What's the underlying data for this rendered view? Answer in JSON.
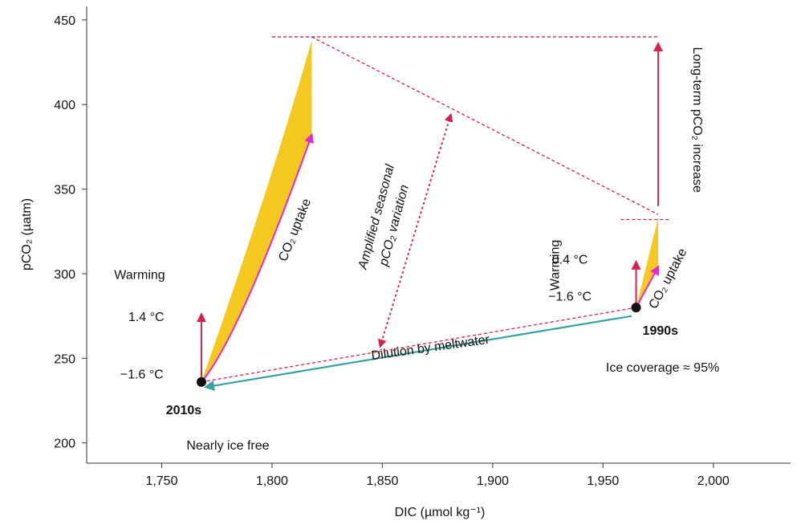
{
  "chart_data": {
    "type": "scatter",
    "xlabel": "DIC (µmol kg⁻¹)",
    "ylabel": "pCO₂ (µatm)",
    "xlim": [
      1716,
      2035
    ],
    "ylim": [
      188,
      458
    ],
    "xticks": [
      1750,
      1800,
      1850,
      1900,
      1950,
      2000
    ],
    "xtick_labels": [
      "1,750",
      "1,800",
      "1,850",
      "1,900",
      "1,950",
      "2,000"
    ],
    "yticks": [
      200,
      250,
      300,
      350,
      400,
      450
    ],
    "ytick_labels": [
      "200",
      "250",
      "300",
      "350",
      "400",
      "450"
    ],
    "points": [
      {
        "label": "2010s",
        "x": 1768,
        "y": 236
      },
      {
        "label": "1990s",
        "x": 1965,
        "y": 280
      }
    ],
    "regions": {
      "region_2010s": [
        [
          1768,
          236
        ],
        [
          1818,
          438
        ],
        [
          1818,
          382
        ]
      ],
      "region_1990s": [
        [
          1965,
          280
        ],
        [
          1975,
          333
        ],
        [
          1975,
          304
        ]
      ]
    },
    "arrows": {
      "warming_2010s": {
        "from": [
          1768,
          236
        ],
        "to": [
          1768,
          276
        ],
        "color": "#d6204e"
      },
      "uptake_2010s": {
        "from": [
          1768,
          236
        ],
        "to": [
          1818,
          382
        ],
        "color": "#e02ad6"
      },
      "warming_1990s": {
        "from": [
          1965,
          280
        ],
        "to": [
          1965,
          307
        ],
        "color": "#d6204e"
      },
      "uptake_1990s": {
        "from": [
          1965,
          280
        ],
        "to": [
          1975,
          304
        ],
        "color": "#e02ad6"
      },
      "long_term": {
        "from": [
          1975,
          340
        ],
        "to": [
          1975,
          436
        ],
        "color": "#d6204e"
      },
      "dilution": {
        "from": [
          1963,
          275
        ],
        "to": [
          1770,
          233
        ],
        "color": "#3aa1a0"
      },
      "seasonal": {
        "from": [
          1881,
          394
        ],
        "to": [
          1849,
          257
        ],
        "color": "#d6204e"
      }
    },
    "dashed_lines": [
      {
        "from": [
          1800,
          440
        ],
        "to": [
          1975,
          440
        ],
        "color": "#d6204e"
      },
      {
        "from": [
          1818,
          440
        ],
        "to": [
          1975,
          335
        ],
        "color": "#d6204e"
      },
      {
        "from": [
          1958,
          332
        ],
        "to": [
          1980,
          332
        ],
        "color": "#d6204e"
      },
      {
        "from": [
          1768,
          236
        ],
        "to": [
          1965,
          280
        ],
        "color": "#d6204e"
      }
    ],
    "annotations": [
      {
        "text": "Warming",
        "x": 1740,
        "y": 297,
        "rotate": 0
      },
      {
        "text": "1.4 °C",
        "x": 1743,
        "y": 272,
        "rotate": 0
      },
      {
        "text": "−1.6 °C",
        "x": 1741,
        "y": 238,
        "rotate": 0
      },
      {
        "text": "2010s",
        "x": 1760,
        "y": 217,
        "rotate": 0,
        "bold": true
      },
      {
        "text": "Nearly ice free",
        "x": 1780,
        "y": 196,
        "rotate": 0
      },
      {
        "text": "CO₂ uptake",
        "x": 1812,
        "y": 325,
        "rotate": -68
      },
      {
        "text": "Amplified seasonal",
        "x": 1849,
        "y": 333,
        "rotate": -75,
        "italic": true
      },
      {
        "text": "pCO₂ variation",
        "x": 1857,
        "y": 328,
        "rotate": -75,
        "italic": true
      },
      {
        "text": "Dilution by meltwater",
        "x": 1872,
        "y": 254,
        "rotate": -8
      },
      {
        "text": "Warming",
        "x": 1930,
        "y": 305,
        "rotate": -90
      },
      {
        "text": "0.4 °C",
        "x": 1935,
        "y": 306,
        "rotate": 0
      },
      {
        "text": "−1.6 °C",
        "x": 1935,
        "y": 284,
        "rotate": 0
      },
      {
        "text": "CO₂ uptake",
        "x": 1981,
        "y": 296,
        "rotate": -62
      },
      {
        "text": "1990s",
        "x": 1976,
        "y": 264,
        "rotate": 0,
        "bold": true
      },
      {
        "text": "Ice coverage ≈ 95%",
        "x": 1977,
        "y": 242,
        "rotate": 0
      },
      {
        "text": "Long-term pCO₂ increase",
        "x": 1991,
        "y": 391,
        "rotate": 90
      }
    ],
    "colors": {
      "fill": "#f5c81f",
      "point": "#111111"
    }
  }
}
